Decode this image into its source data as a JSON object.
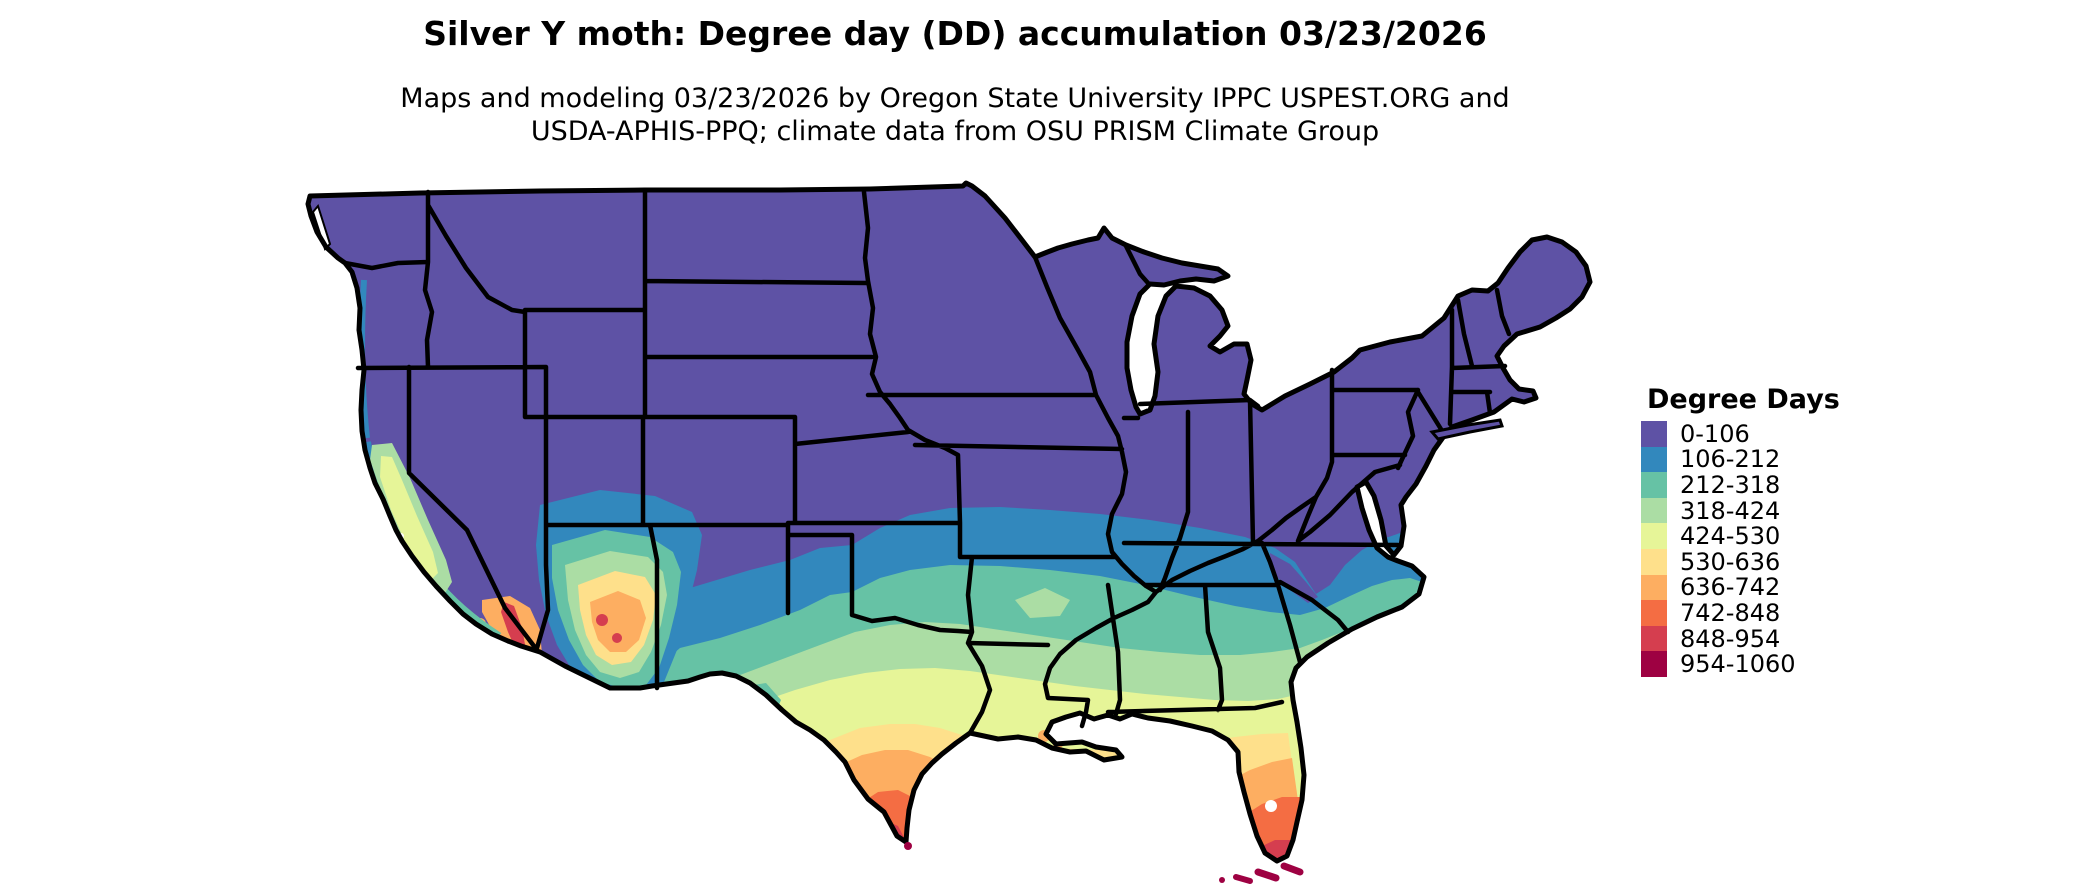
{
  "title": "Silver Y moth: Degree day (DD) accumulation 03/23/2026",
  "subtitle_line1": "Maps and modeling 03/23/2026 by Oregon State University IPPC USPEST.ORG and",
  "subtitle_line2": "USDA-APHIS-PPQ; climate data from OSU PRISM Climate Group",
  "legend": {
    "title": "Degree Days",
    "items": [
      {
        "label": "0-106",
        "color": "#5e52a5"
      },
      {
        "label": "106-212",
        "color": "#3288bd"
      },
      {
        "label": "212-318",
        "color": "#66c2a5"
      },
      {
        "label": "318-424",
        "color": "#abdda4"
      },
      {
        "label": "424-530",
        "color": "#e6f598"
      },
      {
        "label": "530-636",
        "color": "#fee08b"
      },
      {
        "label": "636-742",
        "color": "#fdae61"
      },
      {
        "label": "742-848",
        "color": "#f46d43"
      },
      {
        "label": "848-954",
        "color": "#d53e4f"
      },
      {
        "label": "954-1060",
        "color": "#9e0142"
      }
    ]
  }
}
